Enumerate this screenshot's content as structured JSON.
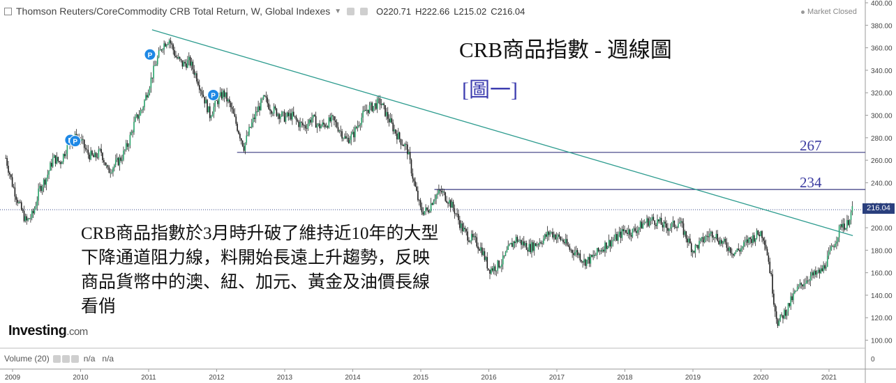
{
  "header": {
    "title": "Thomson Reuters/CoreCommodity CRB Total Return, W, Global Indexes",
    "open_label": "O",
    "open": "220.71",
    "high_label": "H",
    "high": "222.66",
    "low_label": "L",
    "low": "215.02",
    "close_label": "C",
    "close": "216.04",
    "market_status": "Market Closed"
  },
  "annotations": {
    "title": "CRB商品指數 - 週線圖",
    "figure": "[圖一]",
    "level_267": "267",
    "level_234": "234",
    "note": "CRB商品指數於3月時升破了維持近10年的大型下降通道阻力線，料開始長遠上升趨勢，反映商品貨幣中的澳、紐、加元、黃金及油價長線看俏"
  },
  "logo": {
    "brand": "Investing",
    "suffix": ".com"
  },
  "volume": {
    "label": "Volume (20)",
    "v1": "n/a",
    "v2": "n/a"
  },
  "price_tag": "216.04",
  "chart_data": {
    "type": "candlestick",
    "ylim": [
      96,
      400
    ],
    "y_ticks": [
      "400.00",
      "380.00",
      "360.00",
      "340.00",
      "320.00",
      "300.00",
      "280.00",
      "260.00",
      "240.00",
      "220.00",
      "200.00",
      "180.00",
      "160.00",
      "140.00",
      "120.00",
      "100.00"
    ],
    "x_ticks": [
      "2009",
      "2010",
      "2011",
      "2012",
      "2013",
      "2014",
      "2015",
      "2016",
      "2017",
      "2018",
      "2019",
      "2020",
      "2021"
    ],
    "volume_tick": "0",
    "trend_line": [
      [
        2011.05,
        376
      ],
      [
        2021.35,
        193
      ]
    ],
    "horizontal_lines": [
      {
        "value": 267,
        "from": 2012.3
      },
      {
        "value": 234,
        "from": 2015.2
      },
      {
        "value": 216.04,
        "style": "dotted"
      }
    ],
    "p_markers": [
      [
        2009.85,
        278
      ],
      [
        2009.92,
        277
      ],
      [
        2011.02,
        354
      ],
      [
        2011.95,
        318
      ]
    ],
    "path": [
      [
        2008.9,
        262
      ],
      [
        2009.0,
        238
      ],
      [
        2009.1,
        220
      ],
      [
        2009.2,
        205
      ],
      [
        2009.3,
        212
      ],
      [
        2009.4,
        235
      ],
      [
        2009.5,
        245
      ],
      [
        2009.6,
        262
      ],
      [
        2009.7,
        258
      ],
      [
        2009.8,
        272
      ],
      [
        2009.9,
        280
      ],
      [
        2010.0,
        278
      ],
      [
        2010.1,
        266
      ],
      [
        2010.2,
        262
      ],
      [
        2010.3,
        268
      ],
      [
        2010.4,
        250
      ],
      [
        2010.5,
        256
      ],
      [
        2010.6,
        262
      ],
      [
        2010.7,
        275
      ],
      [
        2010.8,
        295
      ],
      [
        2010.9,
        305
      ],
      [
        2011.0,
        325
      ],
      [
        2011.1,
        345
      ],
      [
        2011.2,
        362
      ],
      [
        2011.3,
        368
      ],
      [
        2011.4,
        352
      ],
      [
        2011.5,
        345
      ],
      [
        2011.6,
        348
      ],
      [
        2011.7,
        335
      ],
      [
        2011.8,
        318
      ],
      [
        2011.9,
        300
      ],
      [
        2012.0,
        312
      ],
      [
        2012.1,
        320
      ],
      [
        2012.2,
        308
      ],
      [
        2012.3,
        290
      ],
      [
        2012.4,
        272
      ],
      [
        2012.5,
        290
      ],
      [
        2012.6,
        305
      ],
      [
        2012.7,
        315
      ],
      [
        2012.8,
        306
      ],
      [
        2012.9,
        302
      ],
      [
        2013.0,
        298
      ],
      [
        2013.1,
        300
      ],
      [
        2013.2,
        293
      ],
      [
        2013.3,
        290
      ],
      [
        2013.4,
        298
      ],
      [
        2013.5,
        290
      ],
      [
        2013.6,
        292
      ],
      [
        2013.7,
        296
      ],
      [
        2013.8,
        288
      ],
      [
        2013.9,
        278
      ],
      [
        2014.0,
        282
      ],
      [
        2014.1,
        295
      ],
      [
        2014.2,
        305
      ],
      [
        2014.3,
        308
      ],
      [
        2014.4,
        312
      ],
      [
        2014.5,
        300
      ],
      [
        2014.6,
        288
      ],
      [
        2014.7,
        278
      ],
      [
        2014.8,
        270
      ],
      [
        2014.9,
        240
      ],
      [
        2015.0,
        215
      ],
      [
        2015.1,
        215
      ],
      [
        2015.2,
        228
      ],
      [
        2015.3,
        232
      ],
      [
        2015.4,
        225
      ],
      [
        2015.5,
        215
      ],
      [
        2015.6,
        200
      ],
      [
        2015.7,
        192
      ],
      [
        2015.8,
        188
      ],
      [
        2015.9,
        180
      ],
      [
        2016.0,
        163
      ],
      [
        2016.1,
        165
      ],
      [
        2016.2,
        170
      ],
      [
        2016.3,
        182
      ],
      [
        2016.4,
        190
      ],
      [
        2016.5,
        186
      ],
      [
        2016.6,
        182
      ],
      [
        2016.7,
        186
      ],
      [
        2016.8,
        190
      ],
      [
        2016.9,
        196
      ],
      [
        2017.0,
        192
      ],
      [
        2017.1,
        188
      ],
      [
        2017.2,
        180
      ],
      [
        2017.3,
        178
      ],
      [
        2017.4,
        170
      ],
      [
        2017.5,
        172
      ],
      [
        2017.6,
        178
      ],
      [
        2017.7,
        184
      ],
      [
        2017.8,
        188
      ],
      [
        2017.9,
        192
      ],
      [
        2018.0,
        198
      ],
      [
        2018.1,
        196
      ],
      [
        2018.2,
        200
      ],
      [
        2018.3,
        205
      ],
      [
        2018.4,
        207
      ],
      [
        2018.5,
        205
      ],
      [
        2018.6,
        200
      ],
      [
        2018.7,
        202
      ],
      [
        2018.8,
        205
      ],
      [
        2018.9,
        192
      ],
      [
        2019.0,
        180
      ],
      [
        2019.1,
        186
      ],
      [
        2019.2,
        192
      ],
      [
        2019.3,
        196
      ],
      [
        2019.4,
        188
      ],
      [
        2019.5,
        184
      ],
      [
        2019.6,
        178
      ],
      [
        2019.7,
        181
      ],
      [
        2019.8,
        188
      ],
      [
        2019.9,
        192
      ],
      [
        2020.0,
        196
      ],
      [
        2020.05,
        190
      ],
      [
        2020.1,
        175
      ],
      [
        2020.15,
        155
      ],
      [
        2020.2,
        130
      ],
      [
        2020.25,
        115
      ],
      [
        2020.3,
        120
      ],
      [
        2020.4,
        130
      ],
      [
        2020.5,
        142
      ],
      [
        2020.6,
        150
      ],
      [
        2020.7,
        156
      ],
      [
        2020.8,
        158
      ],
      [
        2020.9,
        162
      ],
      [
        2021.0,
        175
      ],
      [
        2021.1,
        190
      ],
      [
        2021.2,
        205
      ],
      [
        2021.25,
        200
      ],
      [
        2021.3,
        210
      ],
      [
        2021.35,
        216
      ]
    ]
  }
}
